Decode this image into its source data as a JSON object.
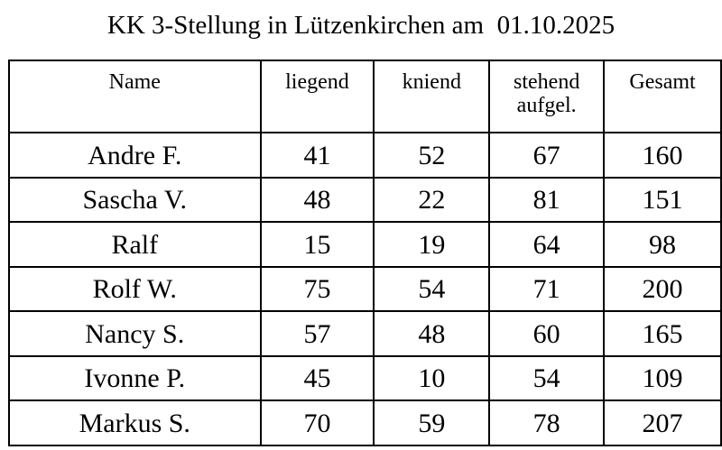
{
  "title": "KK 3-Stellung in Lützenkirchen am  01.10.2025",
  "table": {
    "headers": {
      "name": "Name",
      "liegend": "liegend",
      "kniend": "kniend",
      "stehend_line1": "stehend",
      "stehend_line2": "aufgel.",
      "gesamt": "Gesamt"
    },
    "rows": [
      {
        "name": "Andre F.",
        "liegend": "41",
        "kniend": "52",
        "stehend": "67",
        "gesamt": "160"
      },
      {
        "name": "Sascha V.",
        "liegend": "48",
        "kniend": "22",
        "stehend": "81",
        "gesamt": "151"
      },
      {
        "name": "Ralf",
        "liegend": "15",
        "kniend": "19",
        "stehend": "64",
        "gesamt": "98"
      },
      {
        "name": "Rolf W.",
        "liegend": "75",
        "kniend": "54",
        "stehend": "71",
        "gesamt": "200"
      },
      {
        "name": "Nancy S.",
        "liegend": "57",
        "kniend": "48",
        "stehend": "60",
        "gesamt": "165"
      },
      {
        "name": "Ivonne P.",
        "liegend": "45",
        "kniend": "10",
        "stehend": "54",
        "gesamt": "109"
      },
      {
        "name": "Markus S.",
        "liegend": "70",
        "kniend": "59",
        "stehend": "78",
        "gesamt": "207"
      }
    ]
  }
}
